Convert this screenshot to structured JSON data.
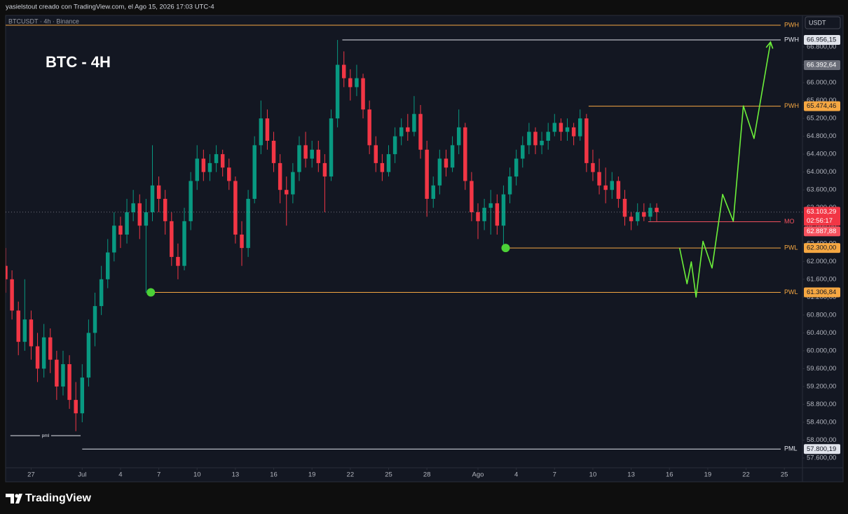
{
  "header": {
    "credit": "yasielstout creado con TradingView.com, el Ago 15, 2026 17:03 UTC-4"
  },
  "footer": {
    "brand": "TradingView"
  },
  "chart_data": {
    "type": "candlestick",
    "title": "BTC - 4H",
    "subtitle": "BTCUSDT · 4h · Binance",
    "currency": "USDT",
    "up_color": "#089981",
    "down_color": "#f23645",
    "grid": false,
    "xlim": [
      "2026-06-25T00:00",
      "2026-08-26T10:00"
    ],
    "ylim": [
      57381,
      67474
    ],
    "xticks": [
      {
        "value": "2026-06-27T00:00",
        "label": "27"
      },
      {
        "value": "2026-07-01T00:00",
        "label": "Jul"
      },
      {
        "value": "2026-07-04T00:00",
        "label": "4"
      },
      {
        "value": "2026-07-07T00:00",
        "label": "7"
      },
      {
        "value": "2026-07-10T00:00",
        "label": "10"
      },
      {
        "value": "2026-07-13T00:00",
        "label": "13"
      },
      {
        "value": "2026-07-16T00:00",
        "label": "16"
      },
      {
        "value": "2026-07-19T00:00",
        "label": "19"
      },
      {
        "value": "2026-07-22T00:00",
        "label": "22"
      },
      {
        "value": "2026-07-25T00:00",
        "label": "25"
      },
      {
        "value": "2026-07-28T00:00",
        "label": "28"
      },
      {
        "value": "2026-08-01T00:00",
        "label": "Ago"
      },
      {
        "value": "2026-08-04T00:00",
        "label": "4"
      },
      {
        "value": "2026-08-07T00:00",
        "label": "7"
      },
      {
        "value": "2026-08-10T00:00",
        "label": "10"
      },
      {
        "value": "2026-08-13T00:00",
        "label": "13"
      },
      {
        "value": "2026-08-16T00:00",
        "label": "16"
      },
      {
        "value": "2026-08-19T00:00",
        "label": "19"
      },
      {
        "value": "2026-08-22T00:00",
        "label": "22"
      },
      {
        "value": "2026-08-25T00:00",
        "label": "25"
      }
    ],
    "yticks": [
      {
        "value": 57600,
        "label": "57.600,00"
      },
      {
        "value": 58000,
        "label": "58.000,00"
      },
      {
        "value": 58400,
        "label": "58.400,00"
      },
      {
        "value": 58800,
        "label": "58.800,00"
      },
      {
        "value": 59200,
        "label": "59.200,00"
      },
      {
        "value": 59600,
        "label": "59.600,00"
      },
      {
        "value": 60000,
        "label": "60.000,00"
      },
      {
        "value": 60400,
        "label": "60.400,00"
      },
      {
        "value": 60800,
        "label": "60.800,00"
      },
      {
        "value": 61200,
        "label": "61.200,00"
      },
      {
        "value": 61600,
        "label": "61.600,00"
      },
      {
        "value": 62000,
        "label": "62.000,00"
      },
      {
        "value": 62400,
        "label": "62.400,00"
      },
      {
        "value": 62800,
        "label": "62.800,00"
      },
      {
        "value": 63200,
        "label": "63.200,00"
      },
      {
        "value": 63600,
        "label": "63.600,00"
      },
      {
        "value": 64000,
        "label": "64.000,00"
      },
      {
        "value": 64400,
        "label": "64.400,00"
      },
      {
        "value": 64800,
        "label": "64.800,00"
      },
      {
        "value": 65200,
        "label": "65.200,00"
      },
      {
        "value": 65600,
        "label": "65.600,00"
      },
      {
        "value": 66000,
        "label": "66.000,00"
      },
      {
        "value": 66400,
        "label": "66.400,00"
      },
      {
        "value": 66800,
        "label": "66.800,00"
      }
    ],
    "x": [
      "2026-06-25T00:00",
      "2026-06-25T12:00",
      "2026-06-26T00:00",
      "2026-06-26T12:00",
      "2026-06-27T00:00",
      "2026-06-27T12:00",
      "2026-06-28T00:00",
      "2026-06-28T12:00",
      "2026-06-29T00:00",
      "2026-06-29T12:00",
      "2026-06-30T00:00",
      "2026-06-30T12:00",
      "2026-07-01T00:00",
      "2026-07-01T12:00",
      "2026-07-02T00:00",
      "2026-07-02T12:00",
      "2026-07-03T00:00",
      "2026-07-03T12:00",
      "2026-07-04T00:00",
      "2026-07-04T12:00",
      "2026-07-05T00:00",
      "2026-07-05T12:00",
      "2026-07-06T00:00",
      "2026-07-06T12:00",
      "2026-07-07T00:00",
      "2026-07-07T12:00",
      "2026-07-08T00:00",
      "2026-07-08T12:00",
      "2026-07-09T00:00",
      "2026-07-09T12:00",
      "2026-07-10T00:00",
      "2026-07-10T12:00",
      "2026-07-11T00:00",
      "2026-07-11T12:00",
      "2026-07-12T00:00",
      "2026-07-12T12:00",
      "2026-07-13T00:00",
      "2026-07-13T12:00",
      "2026-07-14T00:00",
      "2026-07-14T12:00",
      "2026-07-15T00:00",
      "2026-07-15T12:00",
      "2026-07-16T00:00",
      "2026-07-16T12:00",
      "2026-07-17T00:00",
      "2026-07-17T12:00",
      "2026-07-18T00:00",
      "2026-07-18T12:00",
      "2026-07-19T00:00",
      "2026-07-19T12:00",
      "2026-07-20T00:00",
      "2026-07-20T12:00",
      "2026-07-21T00:00",
      "2026-07-21T12:00",
      "2026-07-22T00:00",
      "2026-07-22T12:00",
      "2026-07-23T00:00",
      "2026-07-23T12:00",
      "2026-07-24T00:00",
      "2026-07-24T12:00",
      "2026-07-25T00:00",
      "2026-07-25T12:00",
      "2026-07-26T00:00",
      "2026-07-26T12:00",
      "2026-07-27T00:00",
      "2026-07-27T12:00",
      "2026-07-28T00:00",
      "2026-07-28T12:00",
      "2026-07-29T00:00",
      "2026-07-29T12:00",
      "2026-07-30T00:00",
      "2026-07-30T12:00",
      "2026-07-31T00:00",
      "2026-07-31T12:00",
      "2026-08-01T00:00",
      "2026-08-01T12:00",
      "2026-08-02T00:00",
      "2026-08-02T12:00",
      "2026-08-03T00:00",
      "2026-08-03T12:00",
      "2026-08-04T00:00",
      "2026-08-04T12:00",
      "2026-08-05T00:00",
      "2026-08-05T12:00",
      "2026-08-06T00:00",
      "2026-08-06T12:00",
      "2026-08-07T00:00",
      "2026-08-07T12:00",
      "2026-08-08T00:00",
      "2026-08-08T12:00",
      "2026-08-09T00:00",
      "2026-08-09T12:00",
      "2026-08-10T00:00",
      "2026-08-10T12:00",
      "2026-08-11T00:00",
      "2026-08-11T12:00",
      "2026-08-12T00:00",
      "2026-08-12T12:00",
      "2026-08-13T00:00",
      "2026-08-13T12:00",
      "2026-08-14T00:00",
      "2026-08-14T12:00",
      "2026-08-15T00:00"
    ],
    "ohlc": [
      [
        61900,
        62300,
        61300,
        61600
      ],
      [
        61600,
        61800,
        60700,
        60900
      ],
      [
        60900,
        61100,
        59900,
        60200
      ],
      [
        60200,
        61600,
        60000,
        60700
      ],
      [
        60700,
        60900,
        59800,
        60100
      ],
      [
        60100,
        60400,
        59300,
        59600
      ],
      [
        59600,
        60600,
        59400,
        60300
      ],
      [
        60300,
        60500,
        59500,
        59800
      ],
      [
        59800,
        60000,
        58900,
        59200
      ],
      [
        59200,
        60000,
        59000,
        59700
      ],
      [
        59700,
        59900,
        58700,
        58900
      ],
      [
        58900,
        59300,
        58200,
        58600
      ],
      [
        58600,
        59700,
        58400,
        59400
      ],
      [
        59400,
        60700,
        59200,
        60400
      ],
      [
        60400,
        61300,
        60100,
        61000
      ],
      [
        61000,
        61900,
        60800,
        61600
      ],
      [
        61600,
        62500,
        61400,
        62200
      ],
      [
        62200,
        63100,
        62000,
        62800
      ],
      [
        62800,
        63000,
        62300,
        62600
      ],
      [
        62600,
        63400,
        62400,
        63100
      ],
      [
        63100,
        63600,
        62900,
        63300
      ],
      [
        63300,
        63500,
        62500,
        62800
      ],
      [
        62800,
        63400,
        61300,
        63100
      ],
      [
        63100,
        64600,
        62900,
        63700
      ],
      [
        63700,
        63900,
        63100,
        63400
      ],
      [
        63400,
        63600,
        62600,
        62900
      ],
      [
        62900,
        63100,
        61900,
        62100
      ],
      [
        62100,
        62400,
        61600,
        61900
      ],
      [
        61900,
        63200,
        61800,
        62900
      ],
      [
        62900,
        64000,
        62700,
        63800
      ],
      [
        63800,
        64600,
        63600,
        64300
      ],
      [
        64300,
        64500,
        63800,
        64000
      ],
      [
        64000,
        64400,
        63800,
        64200
      ],
      [
        64200,
        64600,
        64000,
        64400
      ],
      [
        64400,
        64500,
        63900,
        64100
      ],
      [
        64100,
        64300,
        63600,
        63800
      ],
      [
        63800,
        63900,
        62400,
        62600
      ],
      [
        62600,
        62900,
        61900,
        62300
      ],
      [
        62300,
        63600,
        62100,
        63400
      ],
      [
        63400,
        64800,
        63300,
        64600
      ],
      [
        64600,
        65600,
        64400,
        65200
      ],
      [
        65200,
        65400,
        64500,
        64700
      ],
      [
        64700,
        64900,
        64000,
        64200
      ],
      [
        64200,
        64400,
        63300,
        63600
      ],
      [
        63600,
        63900,
        62800,
        63500
      ],
      [
        63500,
        64200,
        63300,
        64000
      ],
      [
        64000,
        64800,
        63800,
        64600
      ],
      [
        64600,
        64900,
        64100,
        64300
      ],
      [
        64300,
        64700,
        64100,
        64500
      ],
      [
        64500,
        64700,
        64000,
        64200
      ],
      [
        64200,
        64400,
        63100,
        63900
      ],
      [
        63900,
        65400,
        63800,
        65200
      ],
      [
        65200,
        66956,
        65000,
        66400
      ],
      [
        66400,
        66700,
        65900,
        66100
      ],
      [
        66100,
        66300,
        65600,
        65900
      ],
      [
        65900,
        66400,
        65700,
        66100
      ],
      [
        66100,
        66200,
        65200,
        65400
      ],
      [
        65400,
        65600,
        64400,
        64600
      ],
      [
        64600,
        64800,
        64000,
        64200
      ],
      [
        64200,
        64400,
        63800,
        64000
      ],
      [
        64000,
        64600,
        63900,
        64400
      ],
      [
        64400,
        65000,
        64200,
        64800
      ],
      [
        64800,
        65200,
        64600,
        65000
      ],
      [
        65000,
        65300,
        64700,
        64900
      ],
      [
        64900,
        65700,
        64800,
        65300
      ],
      [
        65300,
        65500,
        64300,
        64500
      ],
      [
        64500,
        64700,
        63000,
        63400
      ],
      [
        63400,
        63900,
        63200,
        63700
      ],
      [
        63700,
        64500,
        63500,
        64300
      ],
      [
        64300,
        64500,
        63900,
        64100
      ],
      [
        64100,
        64800,
        64000,
        64600
      ],
      [
        64600,
        65400,
        64400,
        65000
      ],
      [
        65000,
        65100,
        63600,
        63800
      ],
      [
        63800,
        64000,
        62900,
        63100
      ],
      [
        63100,
        63300,
        62500,
        62900
      ],
      [
        62900,
        63400,
        62700,
        63200
      ],
      [
        63200,
        63600,
        62600,
        63300
      ],
      [
        63300,
        63500,
        62600,
        62800
      ],
      [
        62800,
        63700,
        62300,
        63500
      ],
      [
        63500,
        64100,
        63300,
        63900
      ],
      [
        63900,
        64500,
        63700,
        64300
      ],
      [
        64300,
        64800,
        64100,
        64600
      ],
      [
        64600,
        65100,
        64400,
        64900
      ],
      [
        64900,
        65000,
        64400,
        64600
      ],
      [
        64600,
        64900,
        64400,
        64700
      ],
      [
        64700,
        65100,
        64500,
        64900
      ],
      [
        64900,
        65300,
        64800,
        65100
      ],
      [
        65100,
        65200,
        64700,
        64900
      ],
      [
        64900,
        65200,
        64700,
        65000
      ],
      [
        65000,
        65100,
        64600,
        64800
      ],
      [
        64800,
        65400,
        64700,
        65200
      ],
      [
        65200,
        65300,
        64000,
        64200
      ],
      [
        64200,
        64500,
        63800,
        64000
      ],
      [
        64000,
        64300,
        63500,
        63700
      ],
      [
        63700,
        64100,
        63300,
        63600
      ],
      [
        63600,
        64000,
        63400,
        63800
      ],
      [
        63800,
        63900,
        63200,
        63400
      ],
      [
        63400,
        63600,
        62800,
        63000
      ],
      [
        63000,
        63100,
        62700,
        62900
      ],
      [
        62900,
        63300,
        62800,
        63100
      ],
      [
        63100,
        63300,
        62900,
        63000
      ],
      [
        63000,
        63300,
        62900,
        63200
      ],
      [
        63200,
        63300,
        62900,
        63103.29
      ]
    ],
    "levels": [
      {
        "name": "PWH",
        "value": 67286,
        "color": "#f5a742"
      },
      {
        "name": "PWH",
        "value": 66956.15,
        "value_label": "66.956,15",
        "color": "#e0e3eb",
        "start": "2026-07-21T09:00"
      },
      {
        "name": "PWH",
        "value": 65474.46,
        "value_label": "65.474,46",
        "color": "#f5a742",
        "start": "2026-08-09T16:00"
      },
      {
        "name": "MO",
        "value": 62887.88,
        "value_label": "62.887,88",
        "color": "#f7525f",
        "start": "2026-08-14T08:00"
      },
      {
        "name": "PWL",
        "value": 62300,
        "value_label": "62.300,00",
        "color": "#f5a742",
        "start": "2026-08-03T04:00",
        "dot": true
      },
      {
        "name": "PWL",
        "value": 61306.84,
        "value_label": "61.306,84",
        "color": "#f5a742",
        "start": "2026-07-06T09:00",
        "dot": true
      },
      {
        "name": "PML",
        "value": 57800.19,
        "value_label": "57.800,19",
        "color": "#e0e3eb",
        "start": "2026-07-01T00:00"
      },
      {
        "name": "pml",
        "value": 58100,
        "color": "#e0e3eb",
        "start": "2026-06-25T09:00",
        "end": "2026-06-30T21:00"
      }
    ],
    "dot_color": "#4cd137",
    "last_price": {
      "value": 63103.29,
      "label": "63.103,29",
      "countdown": "02:56:17",
      "color": "#f23645"
    },
    "price_labels": [
      {
        "value": 66392.64,
        "label": "66.392,64",
        "color": "#6a6d78"
      }
    ],
    "projection": {
      "color": "#6cf03a",
      "x": [
        "2026-08-16T19:00",
        "2026-08-17T09:00",
        "2026-08-17T17:00",
        "2026-08-18T02:00",
        "2026-08-18T15:00",
        "2026-08-19T08:00",
        "2026-08-20T04:00",
        "2026-08-21T00:00",
        "2026-08-21T19:00",
        "2026-08-22T15:00",
        "2026-08-23T22:00"
      ],
      "values": [
        62300,
        61500,
        61990,
        61200,
        62450,
        61850,
        63500,
        62900,
        65480,
        64750,
        66910
      ]
    }
  }
}
